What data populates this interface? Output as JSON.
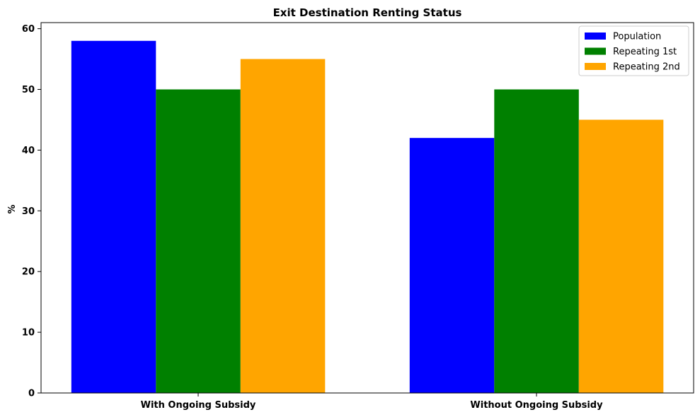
{
  "chart_data": {
    "type": "bar",
    "title": "Exit Destination Renting Status",
    "xlabel": "",
    "ylabel": "%",
    "categories": [
      "With Ongoing Subsidy",
      "Without Ongoing Subsidy"
    ],
    "series": [
      {
        "name": "Population",
        "values": [
          58,
          42
        ],
        "color": "#0000ff"
      },
      {
        "name": "Repeating 1st",
        "values": [
          50,
          50
        ],
        "color": "#008000"
      },
      {
        "name": "Repeating 2nd",
        "values": [
          55,
          45
        ],
        "color": "#ffa500"
      }
    ],
    "ylim": [
      0,
      61
    ],
    "yticks": [
      0,
      10,
      20,
      30,
      40,
      50,
      60
    ],
    "grid": false,
    "legend_position": "top-right"
  }
}
